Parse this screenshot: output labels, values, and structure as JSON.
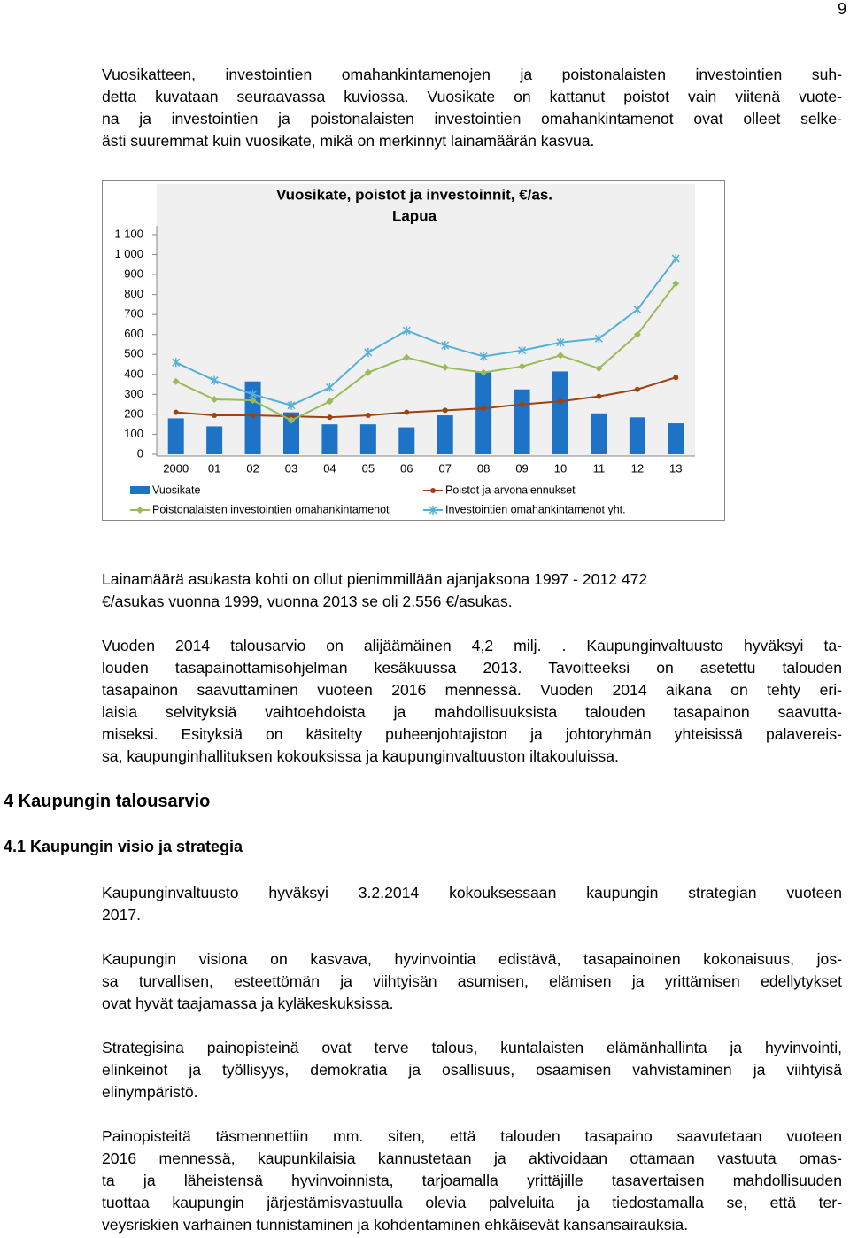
{
  "page_number": "9",
  "paragraphs": [
    {
      "lines": [
        "Vuosikatteen, investointien omahankintamenojen ja poistonalaisten investointien suh-",
        "detta kuvataan seuraavassa kuviossa. Vuosikate on kattanut poistot vain viitenä vuote-",
        "na ja investointien ja poistonalaisten investointien omahankintamenot ovat olleet selke-",
        "ästi suuremmat kuin vuosikate, mikä on merkinnyt lainamäärän kasvua."
      ]
    },
    {
      "lines": [
        "Lainamäärä asukasta kohti on ollut pienimmillään ajanjaksona 1997 - 2012 472",
        "€/asukas vuonna 1999, vuonna 2013 se oli 2.556 €/asukas."
      ]
    },
    {
      "lines": [
        "Vuoden 2014 talousarvio on alijäämäinen 4,2 milj. . Kaupunginvaltuusto hyväksyi ta-",
        "louden tasapainottamisohjelman kesäkuussa 2013. Tavoitteeksi on asetettu talouden",
        "tasapainon saavuttaminen vuoteen 2016 mennessä. Vuoden 2014 aikana on tehty eri-",
        "laisia selvityksiä vaihtoehdoista ja mahdollisuuksista talouden tasapainon saavutta-",
        "miseksi. Esityksiä on käsitelty puheenjohtajiston ja johtoryhmän yhteisissä palavereis-",
        "sa, kaupunginhallituksen kokouksissa ja kaupunginvaltuuston iltakouluissa."
      ]
    },
    {
      "lines": [
        "Kaupunginvaltuusto hyväksyi 3.2.2014 kokouksessaan kaupungin strategian vuoteen",
        "2017."
      ]
    },
    {
      "lines": [
        "Kaupungin visiona on kasvava, hyvinvointia edistävä, tasapainoinen kokonaisuus, jos-",
        "sa turvallisen, esteettömän ja viihtyisän asumisen, elämisen ja yrittämisen edellytykset",
        "ovat hyvät taajamassa ja kyläkeskuksissa."
      ]
    },
    {
      "lines": [
        "Strategisina painopisteinä ovat terve talous, kuntalaisten elämänhallinta ja hyvinvointi,",
        "elinkeinot ja työllisyys, demokratia ja osallisuus, osaamisen vahvistaminen ja viihtyisä",
        "elinympäristö."
      ]
    },
    {
      "lines": [
        "Painopisteitä täsmennettiin mm. siten, että talouden tasapaino saavutetaan vuoteen",
        "2016 mennessä, kaupunkilaisia kannustetaan ja aktivoidaan ottamaan vastuuta omas-",
        "ta ja läheistensä hyvinvoinnista, tarjoamalla yrittäjille tasavertaisen mahdollisuuden",
        "tuottaa kaupungin järjestämisvastuulla olevia palveluita ja tiedostamalla se, että ter-",
        "veysriskien varhainen tunnistaminen ja kohdentaminen ehkäisevät kansansairauksia."
      ]
    }
  ],
  "headings": [
    "4 Kaupungin talousarvio",
    "4.1 Kaupungin visio ja strategia"
  ],
  "chart_data": {
    "type": "bar-line",
    "title": "Vuosikate, poistot ja investoinnit, €/as.",
    "subtitle": "Lapua",
    "categories": [
      "2000",
      "01",
      "02",
      "03",
      "04",
      "05",
      "06",
      "07",
      "08",
      "09",
      "10",
      "11",
      "12",
      "13"
    ],
    "ylim": [
      0,
      1100
    ],
    "yticks": [
      0,
      100,
      200,
      300,
      400,
      500,
      600,
      700,
      800,
      900,
      {
        "value": 1000,
        "label": "1 000"
      },
      {
        "value": 1100,
        "label": "1 100"
      }
    ],
    "series": [
      {
        "name": "Vuosikate",
        "type": "bar",
        "color": "#1f73c6",
        "values": [
          180,
          140,
          365,
          210,
          150,
          150,
          135,
          195,
          410,
          325,
          415,
          205,
          185,
          155
        ]
      },
      {
        "name": "Poistot ja arvonalennukset",
        "type": "line",
        "marker": "circle",
        "color": "#9a4414",
        "values": [
          210,
          195,
          195,
          190,
          185,
          195,
          210,
          220,
          230,
          250,
          265,
          290,
          325,
          385
        ]
      },
      {
        "name": "Poistonalaisten investointien omahankintamenot",
        "type": "line",
        "marker": "diamond",
        "color": "#9bbb59",
        "values": [
          365,
          275,
          270,
          170,
          265,
          410,
          485,
          435,
          410,
          440,
          495,
          430,
          600,
          855
        ]
      },
      {
        "name": "Investointien omahankintamenot yht.",
        "type": "line",
        "marker": "star",
        "color": "#56b0d8",
        "values": [
          460,
          370,
          300,
          245,
          335,
          510,
          620,
          545,
          490,
          520,
          560,
          580,
          725,
          980
        ]
      }
    ]
  }
}
